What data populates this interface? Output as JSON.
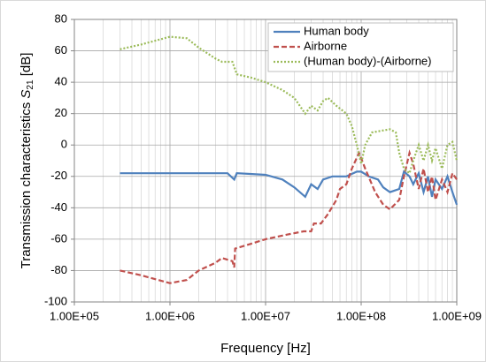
{
  "chart_data": {
    "type": "line",
    "xlabel": "Frequency [Hz]",
    "ylabel": [
      "Transmission characteristics ",
      "S",
      "21",
      " [dB]"
    ],
    "xscale": "log",
    "xlim": [
      100000,
      1000000000
    ],
    "xticks": [
      {
        "value": 100000,
        "label": "1.00E+05"
      },
      {
        "value": 1000000,
        "label": "1.00E+06"
      },
      {
        "value": 10000000,
        "label": "1.00E+07"
      },
      {
        "value": 100000000,
        "label": "1.00E+08"
      },
      {
        "value": 1000000000,
        "label": "1.00E+09"
      }
    ],
    "xminorticks": [
      200000,
      300000,
      400000,
      500000,
      600000,
      700000,
      800000,
      900000,
      2000000,
      3000000,
      4000000,
      5000000,
      6000000,
      7000000,
      8000000,
      9000000,
      20000000,
      30000000,
      40000000,
      50000000,
      60000000,
      70000000,
      80000000,
      90000000,
      200000000,
      300000000,
      400000000,
      500000000,
      600000000,
      700000000,
      800000000,
      900000000
    ],
    "ylim": [
      -100,
      80
    ],
    "yticks": [
      80,
      60,
      40,
      20,
      0,
      -20,
      -40,
      -60,
      -80,
      -100
    ],
    "grid": true,
    "legend": "upper right",
    "series": [
      {
        "name": "Human body",
        "color": "#4f81bd",
        "dash": "solid",
        "x": [
          300000,
          1000000,
          2000000,
          4000000,
          4700000,
          5000000,
          10000000,
          15000000,
          20000000,
          26000000,
          30000000,
          35000000,
          40000000,
          50000000,
          70000000,
          90000000,
          100000000,
          120000000,
          150000000,
          170000000,
          200000000,
          250000000,
          280000000,
          320000000,
          350000000,
          400000000,
          450000000,
          500000000,
          550000000,
          600000000,
          700000000,
          800000000,
          900000000,
          1000000000
        ],
        "values": [
          -18,
          -18,
          -18,
          -18,
          -22,
          -18,
          -19,
          -22,
          -27,
          -33,
          -25,
          -28,
          -22,
          -20,
          -20,
          -17,
          -17,
          -20,
          -22,
          -27,
          -30,
          -28,
          -17,
          -20,
          -25,
          -18,
          -30,
          -20,
          -33,
          -22,
          -28,
          -20,
          -30,
          -38
        ]
      },
      {
        "name": "Airborne",
        "color": "#c0504d",
        "dash": "dashed",
        "x": [
          300000,
          500000,
          1000000,
          1500000,
          2000000,
          3000000,
          3500000,
          4500000,
          4700000,
          4800000,
          7000000,
          10000000,
          17000000,
          25000000,
          30000000,
          32000000,
          38000000,
          45000000,
          55000000,
          60000000,
          70000000,
          80000000,
          95000000,
          110000000,
          140000000,
          170000000,
          200000000,
          250000000,
          280000000,
          320000000,
          350000000,
          400000000,
          450000000,
          500000000,
          550000000,
          600000000,
          700000000,
          800000000,
          900000000,
          1000000000
        ],
        "values": [
          -80,
          -83,
          -88,
          -86,
          -80,
          -75,
          -72,
          -74,
          -78,
          -66,
          -63,
          -60,
          -57,
          -55,
          -55,
          -50,
          -50,
          -44,
          -35,
          -28,
          -25,
          -15,
          -5,
          -15,
          -30,
          -38,
          -41,
          -35,
          -20,
          -5,
          -12,
          -28,
          -15,
          -30,
          -20,
          -35,
          -22,
          -30,
          -18,
          -22
        ]
      },
      {
        "name": "(Human body)-(Airborne)",
        "color": "#9bbb59",
        "dash": "dotted",
        "x": [
          300000,
          500000,
          1000000,
          1500000,
          2000000,
          3000000,
          3500000,
          4500000,
          5000000,
          7000000,
          10000000,
          15000000,
          20000000,
          26000000,
          30000000,
          35000000,
          40000000,
          45000000,
          55000000,
          70000000,
          80000000,
          90000000,
          100000000,
          110000000,
          130000000,
          160000000,
          200000000,
          230000000,
          250000000,
          280000000,
          320000000,
          350000000,
          400000000,
          450000000,
          500000000,
          550000000,
          600000000,
          700000000,
          800000000,
          900000000,
          1000000000
        ],
        "values": [
          61,
          64,
          69,
          68,
          62,
          55,
          53,
          53,
          45,
          43,
          40,
          35,
          30,
          20,
          25,
          22,
          28,
          30,
          25,
          20,
          12,
          0,
          -12,
          0,
          8,
          9,
          10,
          8,
          -5,
          -15,
          -18,
          -10,
          0,
          -10,
          0,
          -10,
          -2,
          -15,
          0,
          2,
          -10
        ]
      }
    ]
  }
}
